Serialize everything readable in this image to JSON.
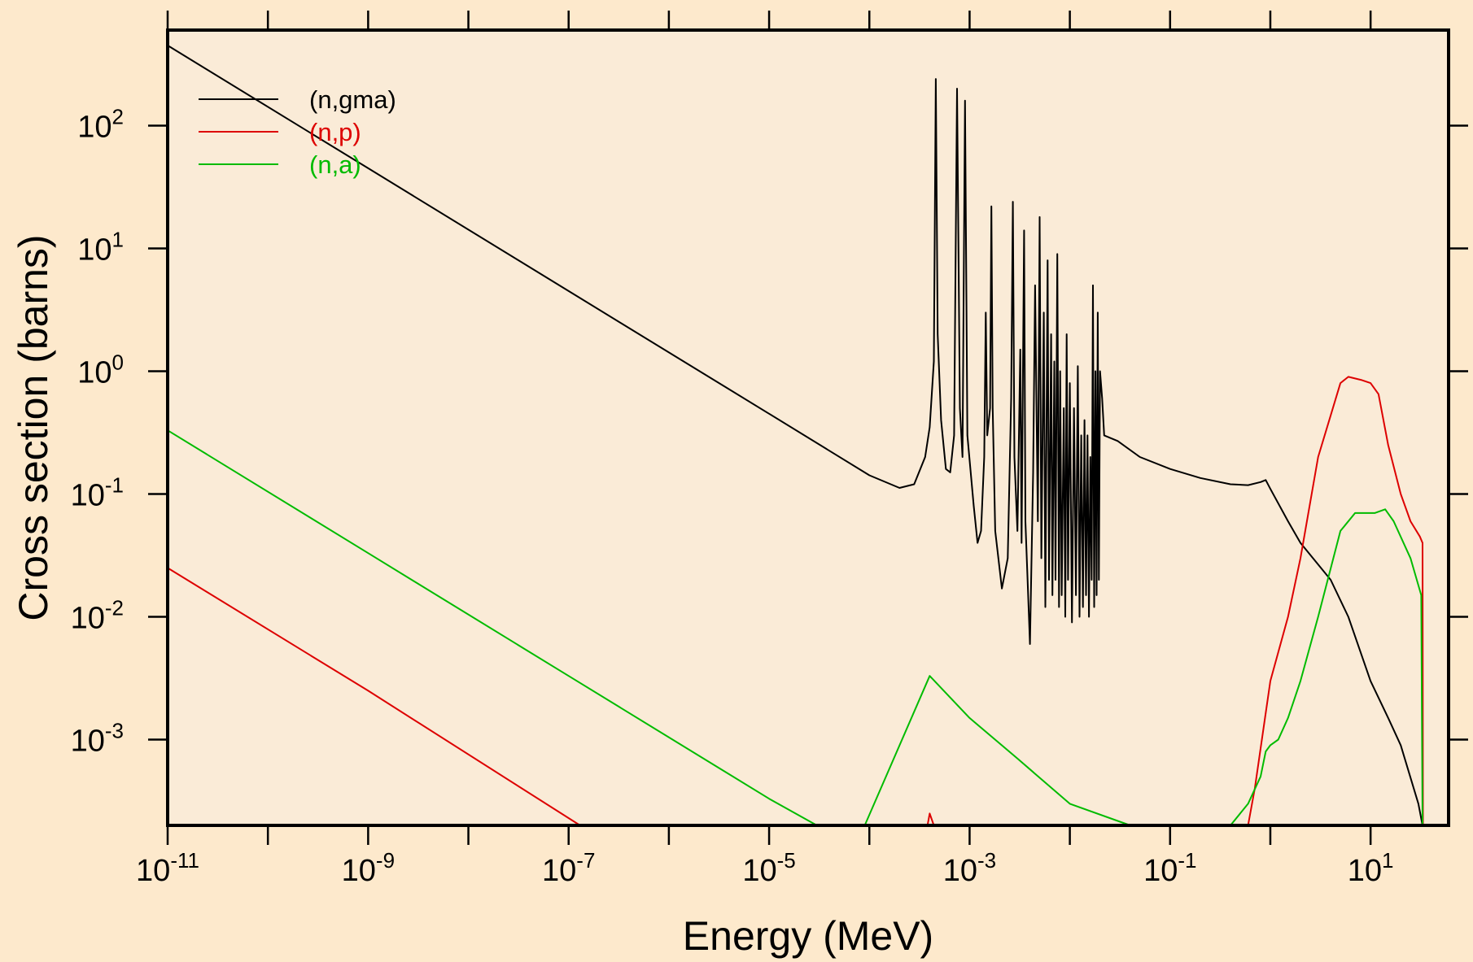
{
  "colors": {
    "page_background": "#fde9cc",
    "plot_background": "#faebd7",
    "frame": "#000000"
  },
  "chart_data": {
    "type": "line",
    "title": "",
    "xlabel": "Energy (MeV)",
    "ylabel": "Cross section (barns)",
    "x_scale": "log",
    "y_scale": "log",
    "xlim": [
      1e-11,
      60
    ],
    "ylim": [
      0.0002,
      600
    ],
    "grid": false,
    "legend_position": "top-left",
    "x_ticks": [
      {
        "value": 1e-11,
        "base": "10",
        "exp": "-11"
      },
      {
        "value": 1e-09,
        "base": "10",
        "exp": "-9"
      },
      {
        "value": 1e-07,
        "base": "10",
        "exp": "-7"
      },
      {
        "value": 1e-05,
        "base": "10",
        "exp": "-5"
      },
      {
        "value": 0.001,
        "base": "10",
        "exp": "-3"
      },
      {
        "value": 0.1,
        "base": "10",
        "exp": "-1"
      },
      {
        "value": 10,
        "base": "10",
        "exp": "1"
      }
    ],
    "x_minor_ticks": [
      1e-10,
      1e-08,
      1e-06,
      0.0001,
      0.01,
      1
    ],
    "y_ticks": [
      {
        "value": 0.001,
        "base": "10",
        "exp": "-3"
      },
      {
        "value": 0.01,
        "base": "10",
        "exp": "-2"
      },
      {
        "value": 0.1,
        "base": "10",
        "exp": "-1"
      },
      {
        "value": 1,
        "base": "10",
        "exp": "0"
      },
      {
        "value": 10,
        "base": "10",
        "exp": "1"
      },
      {
        "value": 100,
        "base": "10",
        "exp": "2"
      }
    ],
    "series": [
      {
        "name": "(n,gma)",
        "color": "#000000",
        "points": [
          [
            1e-11,
            450
          ],
          [
            1e-09,
            45
          ],
          [
            1e-07,
            4.5
          ],
          [
            1e-05,
            0.45
          ],
          [
            0.0001,
            0.142
          ],
          [
            0.0002,
            0.112
          ],
          [
            0.00028,
            0.12
          ],
          [
            0.00036,
            0.2
          ],
          [
            0.0004,
            0.35
          ],
          [
            0.00044,
            1.2
          ],
          [
            0.00046,
            240
          ],
          [
            0.00048,
            2
          ],
          [
            0.00052,
            0.4
          ],
          [
            0.00058,
            0.16
          ],
          [
            0.00064,
            0.15
          ],
          [
            0.0007,
            0.3
          ],
          [
            0.00075,
            200
          ],
          [
            0.0008,
            0.5
          ],
          [
            0.00085,
            0.2
          ],
          [
            0.0009,
            160
          ],
          [
            0.00095,
            0.3
          ],
          [
            0.0011,
            0.08
          ],
          [
            0.0012,
            0.04
          ],
          [
            0.0013,
            0.05
          ],
          [
            0.0014,
            0.2
          ],
          [
            0.00145,
            3
          ],
          [
            0.0015,
            0.3
          ],
          [
            0.0016,
            0.5
          ],
          [
            0.00165,
            22
          ],
          [
            0.0017,
            0.5
          ],
          [
            0.0018,
            0.05
          ],
          [
            0.0021,
            0.017
          ],
          [
            0.0024,
            0.03
          ],
          [
            0.0026,
            0.6
          ],
          [
            0.0027,
            24
          ],
          [
            0.0028,
            0.2
          ],
          [
            0.003,
            0.05
          ],
          [
            0.0032,
            1.5
          ],
          [
            0.0033,
            0.04
          ],
          [
            0.0035,
            14
          ],
          [
            0.0036,
            0.06
          ],
          [
            0.004,
            0.006
          ],
          [
            0.0043,
            0.15
          ],
          [
            0.0045,
            5
          ],
          [
            0.0048,
            0.06
          ],
          [
            0.005,
            18
          ],
          [
            0.0052,
            0.03
          ],
          [
            0.0055,
            3
          ],
          [
            0.0057,
            0.012
          ],
          [
            0.006,
            8
          ],
          [
            0.0062,
            0.02
          ],
          [
            0.0065,
            2
          ],
          [
            0.0067,
            0.015
          ],
          [
            0.007,
            1.2
          ],
          [
            0.0072,
            0.02
          ],
          [
            0.0075,
            9
          ],
          [
            0.0078,
            0.012
          ],
          [
            0.008,
            1
          ],
          [
            0.0083,
            0.015
          ],
          [
            0.0087,
            0.5
          ],
          [
            0.009,
            0.01
          ],
          [
            0.0093,
            2
          ],
          [
            0.0096,
            0.02
          ],
          [
            0.01,
            0.8
          ],
          [
            0.0105,
            0.009
          ],
          [
            0.011,
            0.5
          ],
          [
            0.0115,
            0.015
          ],
          [
            0.012,
            1.1
          ],
          [
            0.0125,
            0.01
          ],
          [
            0.013,
            0.3
          ],
          [
            0.0135,
            0.012
          ],
          [
            0.014,
            0.4
          ],
          [
            0.0145,
            0.015
          ],
          [
            0.015,
            0.3
          ],
          [
            0.0155,
            0.01
          ],
          [
            0.016,
            0.2
          ],
          [
            0.0165,
            0.02
          ],
          [
            0.017,
            5
          ],
          [
            0.0175,
            0.012
          ],
          [
            0.018,
            1
          ],
          [
            0.0185,
            0.015
          ],
          [
            0.019,
            3
          ],
          [
            0.0195,
            0.02
          ],
          [
            0.02,
            1
          ],
          [
            0.021,
            0.6
          ],
          [
            0.022,
            0.3
          ],
          [
            0.03,
            0.27
          ],
          [
            0.05,
            0.2
          ],
          [
            0.1,
            0.16
          ],
          [
            0.2,
            0.135
          ],
          [
            0.4,
            0.12
          ],
          [
            0.6,
            0.118
          ],
          [
            0.8,
            0.125
          ],
          [
            0.9,
            0.13
          ],
          [
            1,
            0.11
          ],
          [
            1.5,
            0.06
          ],
          [
            2,
            0.04
          ],
          [
            4,
            0.02
          ],
          [
            6,
            0.01
          ],
          [
            10,
            0.003
          ],
          [
            15,
            0.0015
          ],
          [
            20,
            0.0009
          ],
          [
            30,
            0.0003
          ],
          [
            33,
            0.0002
          ],
          [
            60,
            0.0002
          ]
        ]
      },
      {
        "name": "(n,p)",
        "color": "#dd0000",
        "points": [
          [
            1e-11,
            0.025
          ],
          [
            1e-09,
            0.0025
          ],
          [
            1.3e-07,
            0.0002
          ],
          [
            0.00038,
            0.0002
          ],
          [
            0.0004,
            0.00025
          ],
          [
            0.00044,
            0.0002
          ],
          [
            0.6,
            0.0002
          ],
          [
            0.7,
            0.0004
          ],
          [
            1,
            0.003
          ],
          [
            1.5,
            0.01
          ],
          [
            2,
            0.03
          ],
          [
            3,
            0.2
          ],
          [
            5,
            0.8
          ],
          [
            6,
            0.9
          ],
          [
            8,
            0.85
          ],
          [
            10,
            0.8
          ],
          [
            12,
            0.65
          ],
          [
            15,
            0.25
          ],
          [
            20,
            0.1
          ],
          [
            25,
            0.06
          ],
          [
            31,
            0.045
          ],
          [
            33,
            0.04
          ],
          [
            33.3,
            0.0002
          ],
          [
            60,
            0.0002
          ]
        ]
      },
      {
        "name": "(n,a)",
        "color": "#00bb00",
        "points": [
          [
            1e-11,
            0.33
          ],
          [
            1e-09,
            0.033
          ],
          [
            1e-07,
            0.0033
          ],
          [
            1e-05,
            0.00033
          ],
          [
            3e-05,
            0.0002
          ],
          [
            9e-05,
            0.0002
          ],
          [
            0.0004,
            0.0033
          ],
          [
            0.001,
            0.0015
          ],
          [
            0.003,
            0.0007
          ],
          [
            0.01,
            0.0003
          ],
          [
            0.04,
            0.0002
          ],
          [
            0.4,
            0.0002
          ],
          [
            0.6,
            0.0003
          ],
          [
            0.8,
            0.0005
          ],
          [
            0.9,
            0.0008
          ],
          [
            1,
            0.0009
          ],
          [
            1.2,
            0.001
          ],
          [
            1.5,
            0.0015
          ],
          [
            2,
            0.003
          ],
          [
            3,
            0.01
          ],
          [
            5,
            0.05
          ],
          [
            7,
            0.07
          ],
          [
            9,
            0.07
          ],
          [
            11,
            0.07
          ],
          [
            14,
            0.075
          ],
          [
            17,
            0.06
          ],
          [
            25,
            0.03
          ],
          [
            32,
            0.015
          ],
          [
            33,
            0.0002
          ],
          [
            60,
            0.0002
          ]
        ]
      }
    ]
  }
}
